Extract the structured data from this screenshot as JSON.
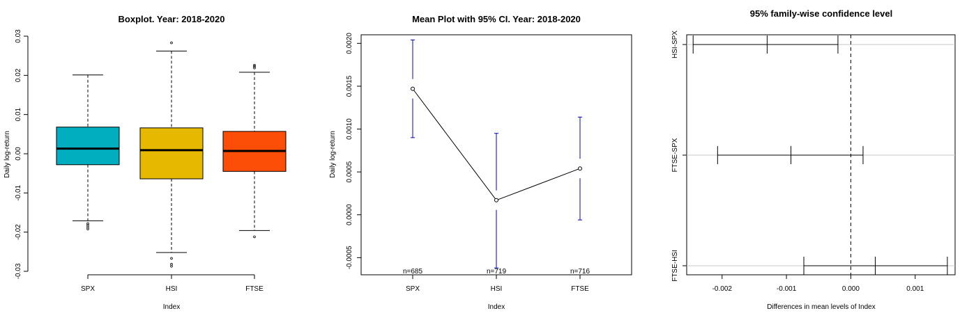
{
  "chart_data": [
    {
      "type": "boxplot",
      "title": "Boxplot. Year: 2018-2020",
      "xlabel": "Index",
      "ylabel": "Daily log-return",
      "ylim": [
        -0.03,
        0.03
      ],
      "yticks": [
        "-0.03",
        "-0.02",
        "-0.01",
        "0.00",
        "0.01",
        "0.02",
        "0.03"
      ],
      "categories": [
        "SPX",
        "HSI",
        "FTSE"
      ],
      "colors": [
        "#00AEBF",
        "#E7B800",
        "#FC4E07"
      ],
      "boxes": [
        {
          "name": "SPX",
          "whisker_low": -0.0171,
          "q1": -0.0028,
          "median": 0.0013,
          "q3": 0.0068,
          "whisker_high": 0.0201,
          "outliers": [
            -0.0178,
            -0.0182,
            -0.0187,
            -0.0192
          ]
        },
        {
          "name": "HSI",
          "whisker_low": -0.0252,
          "q1": -0.0064,
          "median": 0.0009,
          "q3": 0.0066,
          "whisker_high": 0.0262,
          "outliers": [
            0.0283,
            -0.0267,
            -0.0282,
            -0.0287
          ]
        },
        {
          "name": "FTSE",
          "whisker_low": -0.0196,
          "q1": -0.0045,
          "median": 0.0007,
          "q3": 0.0057,
          "whisker_high": 0.0208,
          "outliers": [
            0.0219,
            0.0223,
            0.0226,
            -0.0212
          ]
        }
      ]
    },
    {
      "type": "line",
      "title": "Mean Plot with 95% CI. Year: 2018-2020",
      "xlabel": "Index",
      "ylabel": "Daily log-return",
      "ylim": [
        -0.0007,
        0.0021
      ],
      "yticks": [
        "-0.0005",
        "0.0000",
        "0.0005",
        "0.0010",
        "0.0015",
        "0.0020"
      ],
      "categories": [
        "SPX",
        "HSI",
        "FTSE"
      ],
      "means": [
        0.00147,
        0.00017,
        0.00054
      ],
      "ci_low": [
        0.0009,
        -0.00062,
        -6e-05
      ],
      "ci_high": [
        0.00204,
        0.00095,
        0.00114
      ],
      "n_labels": [
        "n=685",
        "n=719",
        "n=716"
      ],
      "ci_color": "#0000CC"
    },
    {
      "type": "interval",
      "title": "95% family-wise confidence level",
      "xlabel": "Differences in mean levels of Index",
      "xlim": [
        -0.00255,
        0.00162
      ],
      "xticks": [
        "-0.002",
        "-0.001",
        "0.000",
        "0.001"
      ],
      "comparisons": [
        {
          "label": "HSI-SPX",
          "estimate": -0.0013,
          "low": -0.00245,
          "high": -0.0002
        },
        {
          "label": "FTSE-SPX",
          "estimate": -0.00093,
          "low": -0.00207,
          "high": 0.00019
        },
        {
          "label": "FTSE-HSI",
          "estimate": 0.00038,
          "low": -0.00073,
          "high": 0.0015
        }
      ]
    }
  ]
}
